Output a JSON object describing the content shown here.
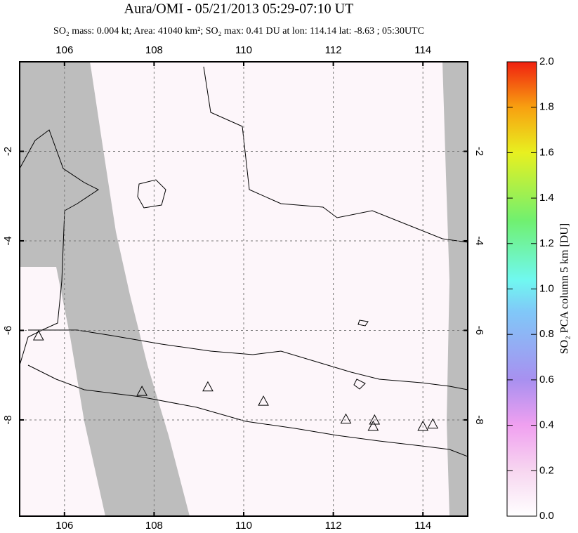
{
  "title": "Aura/OMI - 05/21/2013 05:29-07:10 UT",
  "subtitle": "SO₂ mass: 0.004 kt; Area: 41040 km²; SO₂ max: 0.41 DU at lon: 114.14 lat: -8.63 ; 05:30UTC",
  "map": {
    "xlim": [
      105,
      115
    ],
    "ylim": [
      -10.15,
      0
    ],
    "xticks": [
      106,
      108,
      110,
      112,
      114
    ],
    "yticks": [
      -2,
      -4,
      -6,
      -8
    ],
    "grid": true,
    "volcanoes": {
      "lon": [
        105.42,
        107.73,
        109.2,
        110.44,
        112.28,
        112.92,
        112.89,
        114.0,
        114.22
      ],
      "lat": [
        -6.12,
        -7.36,
        -7.26,
        -7.58,
        -7.98,
        -8.0,
        -8.14,
        -8.14,
        -8.09
      ]
    }
  },
  "colorbar": {
    "label": "SO₂ PCA column 5 km [DU]",
    "lim": [
      0,
      2
    ],
    "ticks": [
      {
        "value": 0,
        "label": "0.0"
      },
      {
        "value": 0.2,
        "label": "0.2"
      },
      {
        "value": 0.4,
        "label": "0.4"
      },
      {
        "value": 0.6,
        "label": "0.6"
      },
      {
        "value": 0.8,
        "label": "0.8"
      },
      {
        "value": 1,
        "label": "1.0"
      },
      {
        "value": 1.2,
        "label": "1.2"
      },
      {
        "value": 1.4,
        "label": "1.4"
      },
      {
        "value": 1.6,
        "label": "1.6"
      },
      {
        "value": 1.8,
        "label": "1.8"
      },
      {
        "value": 2,
        "label": "2.0"
      }
    ]
  }
}
